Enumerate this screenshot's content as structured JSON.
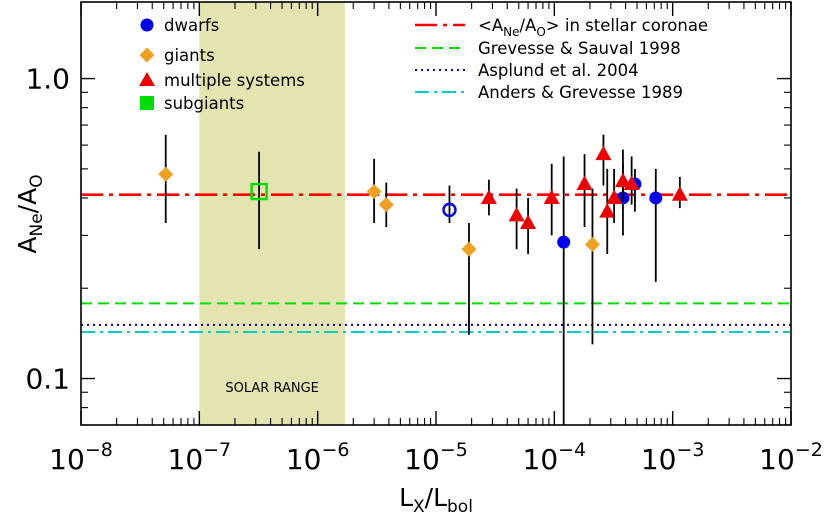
{
  "chart_data": {
    "type": "scatter",
    "xscale": "log",
    "yscale": "log",
    "xlim": [
      1e-08,
      0.01
    ],
    "ylim": [
      0.07,
      1.8
    ],
    "xticks": [
      {
        "value": 1e-08,
        "base": "10",
        "exp": "−8"
      },
      {
        "value": 1e-07,
        "base": "10",
        "exp": "−7"
      },
      {
        "value": 1e-06,
        "base": "10",
        "exp": "−6"
      },
      {
        "value": 1e-05,
        "base": "10",
        "exp": "−5"
      },
      {
        "value": 0.0001,
        "base": "10",
        "exp": "−4"
      },
      {
        "value": 0.001,
        "base": "10",
        "exp": "−3"
      },
      {
        "value": 0.01,
        "base": "10",
        "exp": "−2"
      }
    ],
    "yticks": [
      {
        "value": 0.1,
        "label": "0.1"
      },
      {
        "value": 1.0,
        "label": "1.0"
      }
    ],
    "xlabel": {
      "main": "L",
      "sub1": "X",
      "sep": "/L",
      "sub2": "bol"
    },
    "ylabel": {
      "main": "A",
      "sub1": "Ne",
      "sep": "/A",
      "sub2": "O"
    },
    "shaded_region": {
      "x_range": [
        1e-07,
        1.7e-06
      ],
      "label": "SOLAR RANGE",
      "color": "#e4e4b0"
    },
    "reference_lines": [
      {
        "name": "coronae",
        "y": 0.41,
        "color": "#ff0000",
        "dash": "22 6 4 6",
        "width": 2.6,
        "label_parts": {
          "open": "<A",
          "sub1": "Ne",
          "sep": "/A",
          "sub2": "O",
          "close": "> in stellar coronae"
        }
      },
      {
        "name": "Grevesse & Sauval 1998",
        "y": 0.178,
        "color": "#00dd00",
        "dash": "11 6",
        "width": 2,
        "label": "Grevesse & Sauval 1998"
      },
      {
        "name": "Asplund et al. 2004",
        "y": 0.151,
        "color": "#0000cc",
        "dash": "2 4",
        "width": 2,
        "label": "Asplund et al. 2004"
      },
      {
        "name": "Anders & Grevesse 1989",
        "y": 0.143,
        "color": "#00cccc",
        "dash": "14 5 3 5",
        "width": 2,
        "label": "Anders & Grevesse 1989"
      }
    ],
    "series": [
      {
        "name": "dwarfs",
        "marker": "circle",
        "color": "#0000ee",
        "points": [
          {
            "x": 1.3e-05,
            "y": 0.365,
            "ylo": 0.33,
            "yhi": 0.44,
            "open": true
          },
          {
            "x": 0.00012,
            "y": 0.285,
            "ylo": 0.07,
            "yhi": 0.55
          },
          {
            "x": 0.00038,
            "y": 0.4,
            "ylo": 0.3,
            "yhi": 0.52
          },
          {
            "x": 0.00048,
            "y": 0.445,
            "ylo": 0.36,
            "yhi": 0.5
          },
          {
            "x": 0.00072,
            "y": 0.4,
            "ylo": 0.21,
            "yhi": 0.5
          }
        ]
      },
      {
        "name": "giants",
        "marker": "diamond",
        "color": "#f0a020",
        "points": [
          {
            "x": 5.2e-08,
            "y": 0.48,
            "ylo": 0.33,
            "yhi": 0.65
          },
          {
            "x": 3e-06,
            "y": 0.42,
            "ylo": 0.33,
            "yhi": 0.54
          },
          {
            "x": 3.8e-06,
            "y": 0.38,
            "ylo": 0.32,
            "yhi": 0.45
          },
          {
            "x": 1.9e-05,
            "y": 0.27,
            "ylo": 0.14,
            "yhi": 0.33
          },
          {
            "x": 0.00021,
            "y": 0.28,
            "ylo": 0.13,
            "yhi": 0.43
          }
        ]
      },
      {
        "name": "multiple systems",
        "marker": "triangle",
        "color": "#ee0000",
        "points": [
          {
            "x": 2.8e-05,
            "y": 0.4,
            "ylo": 0.35,
            "yhi": 0.46
          },
          {
            "x": 4.8e-05,
            "y": 0.35,
            "ylo": 0.27,
            "yhi": 0.43
          },
          {
            "x": 6e-05,
            "y": 0.33,
            "ylo": 0.26,
            "yhi": 0.4
          },
          {
            "x": 9.5e-05,
            "y": 0.4,
            "ylo": 0.3,
            "yhi": 0.52
          },
          {
            "x": 0.00018,
            "y": 0.445,
            "ylo": 0.32,
            "yhi": 0.56
          },
          {
            "x": 0.00026,
            "y": 0.56,
            "ylo": 0.44,
            "yhi": 0.65
          },
          {
            "x": 0.00028,
            "y": 0.36,
            "ylo": 0.26,
            "yhi": 0.5
          },
          {
            "x": 0.00032,
            "y": 0.4,
            "ylo": 0.33,
            "yhi": 0.5
          },
          {
            "x": 0.00038,
            "y": 0.455,
            "ylo": 0.39,
            "yhi": 0.58
          },
          {
            "x": 0.00045,
            "y": 0.445,
            "ylo": 0.38,
            "yhi": 0.55
          },
          {
            "x": 0.00115,
            "y": 0.41,
            "ylo": 0.37,
            "yhi": 0.47
          }
        ]
      },
      {
        "name": "subgiants",
        "marker": "square",
        "color": "#00dd00",
        "points": [
          {
            "x": 3.2e-07,
            "y": 0.42,
            "ylo": 0.27,
            "yhi": 0.57,
            "open": true
          }
        ]
      }
    ]
  }
}
